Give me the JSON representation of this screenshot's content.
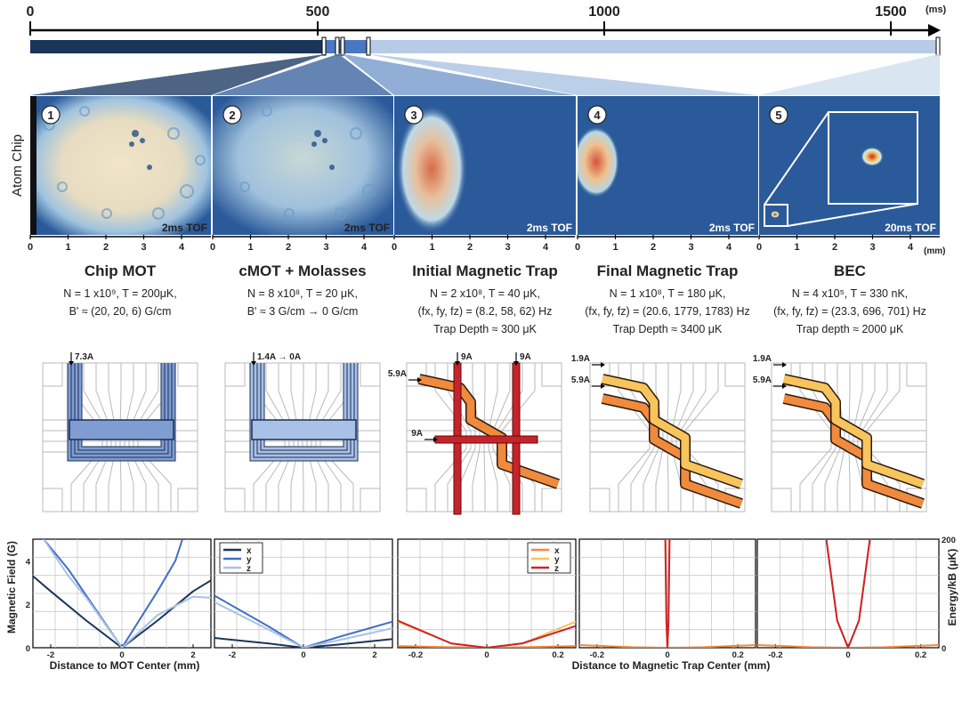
{
  "timeline": {
    "ticks": [
      "0",
      "500",
      "1000",
      "1500"
    ],
    "unit": "(ms)"
  },
  "side_label": "Atom Chip",
  "image_axis_ticks": [
    "0",
    "1",
    "2",
    "3",
    "4"
  ],
  "image_axis_unit": "(mm)",
  "stages": [
    {
      "num": "1",
      "tof": "2ms TOF",
      "title": "Chip MOT",
      "params": [
        "N = 1 x10⁹,  T = 200μK,",
        "B' ≈ (20, 20, 6) G/cm"
      ],
      "currents": [
        "7.3A"
      ]
    },
    {
      "num": "2",
      "tof": "2ms TOF",
      "title": "cMOT + Molasses",
      "params": [
        "N = 8 x10⁸,  T = 20 μK,",
        "B' ≈ 3 G/cm → 0 G/cm"
      ],
      "currents": [
        "1.4A → 0A"
      ]
    },
    {
      "num": "3",
      "tof": "2ms TOF",
      "title": "Initial Magnetic Trap",
      "params": [
        "N = 2 x10⁸,  T = 40 μK,",
        "(fx, fy, fz) = (8.2, 58, 62) Hz",
        "Trap Depth ≈ 300 μK"
      ],
      "currents": [
        "9A",
        "9A",
        "5.9A",
        "9A"
      ]
    },
    {
      "num": "4",
      "tof": "2ms TOF",
      "title": "Final Magnetic Trap",
      "params": [
        "N = 1 x10⁸,  T = 180 μK,",
        "(fx, fy, fz) = (20.6, 1779, 1783) Hz",
        "Trap Depth ≈ 3400 μK"
      ],
      "currents": [
        "1.9A",
        "5.9A"
      ]
    },
    {
      "num": "5",
      "tof": "20ms TOF",
      "title": "BEC",
      "params": [
        "N = 4 x10⁵,  T = 330 nK,",
        "(fx, fy, fz) = (23.3, 696, 701) Hz",
        "Trap depth ≈ 2000 μK"
      ],
      "currents": [
        "1.9A",
        "5.9A"
      ]
    }
  ],
  "colors": {
    "timeline_dark": "#1b355a",
    "timeline_mid": "#4a77c4",
    "timeline_light": "#b7cbe7",
    "image_bg": "#2a5a9a",
    "wire_blue": "#7f9dd2",
    "wire_red": "#c8232a",
    "wire_orange": "#f08a3c",
    "wire_yellow": "#f8c45c",
    "x_blue": "#1b355a",
    "y_blue": "#3f6fc4",
    "z_blue": "#a9c2e6",
    "x_warm": "#f28a3c",
    "y_warm": "#f6c35a",
    "z_warm": "#cc2229"
  },
  "chart_data": [
    {
      "type": "line",
      "xlabel": "Distance to MOT Center (mm)",
      "ylabel": "Magnetic Field (G)",
      "xlim": [
        -2.5,
        2.5
      ],
      "ylim": [
        0,
        5
      ],
      "xticks": [
        "-2",
        "0",
        "2"
      ],
      "yticks": [
        "0",
        "2",
        "4"
      ],
      "grid": true,
      "legend": null,
      "series": [
        {
          "x": [
            -2.5,
            -2,
            -1,
            0,
            1,
            2,
            2.5
          ],
          "y": [
            3.3,
            2.6,
            1.25,
            0,
            1.25,
            2.6,
            3.1
          ]
        },
        {
          "x": [
            -2.2,
            -1.5,
            -1,
            0,
            1,
            1.5,
            1.7
          ],
          "y": [
            5.0,
            3.6,
            2.4,
            0,
            2.6,
            4.0,
            5.0
          ]
        },
        {
          "x": [
            -2.2,
            -1.5,
            -1,
            0,
            1,
            2,
            2.5
          ],
          "y": [
            5.0,
            3.3,
            2.3,
            0,
            1.5,
            2.35,
            2.3
          ]
        }
      ]
    },
    {
      "type": "line",
      "xlim": [
        -2.5,
        2.5
      ],
      "ylim": [
        0,
        5
      ],
      "xticks": [
        "-2",
        "0",
        "2"
      ],
      "grid": true,
      "legend": "top-left",
      "series": [
        {
          "name": "x",
          "x": [
            -2.5,
            -1,
            0,
            1,
            2.5
          ],
          "y": [
            0.45,
            0.2,
            0,
            0.15,
            0.4
          ]
        },
        {
          "name": "y",
          "x": [
            -2.5,
            -1,
            0,
            1,
            2.5
          ],
          "y": [
            2.4,
            1.0,
            0,
            0.5,
            1.2
          ]
        },
        {
          "name": "z",
          "x": [
            -2.5,
            -1,
            0,
            1,
            2.5
          ],
          "y": [
            2.1,
            0.85,
            0,
            0.35,
            0.9
          ]
        }
      ]
    },
    {
      "type": "line",
      "xlim": [
        -0.25,
        0.25
      ],
      "ylim": [
        0,
        200
      ],
      "xticks": [
        "-0.2",
        "0",
        "0.2"
      ],
      "grid": true,
      "legend": "top-right",
      "series": [
        {
          "name": "x",
          "x": [
            -0.25,
            -0.1,
            0,
            0.1,
            0.25
          ],
          "y": [
            3,
            1,
            0,
            1,
            3
          ]
        },
        {
          "name": "y",
          "x": [
            -0.25,
            -0.1,
            0,
            0.1,
            0.25
          ],
          "y": [
            48,
            8,
            0,
            8,
            48
          ]
        },
        {
          "name": "z",
          "x": [
            -0.25,
            -0.1,
            0,
            0.1,
            0.25
          ],
          "y": [
            50,
            8,
            0,
            8,
            40
          ]
        }
      ]
    },
    {
      "type": "line",
      "xlabel": "Distance to Magnetic Trap Center (mm)",
      "xlim": [
        -0.25,
        0.25
      ],
      "ylim": [
        0,
        200
      ],
      "xticks": [
        "-0.2",
        "0",
        "0.2"
      ],
      "grid": true,
      "legend": null,
      "series": [
        {
          "x": [
            -0.25,
            -0.1,
            0,
            0.1,
            0.25
          ],
          "y": [
            5,
            1,
            0,
            1,
            5
          ]
        },
        {
          "x": [
            -0.006,
            -0.003,
            0,
            0.003,
            0.006
          ],
          "y": [
            200,
            50,
            0,
            50,
            200
          ]
        },
        {
          "x": [
            -0.006,
            -0.003,
            0,
            0.003,
            0.006
          ],
          "y": [
            200,
            50,
            0,
            50,
            200
          ]
        }
      ]
    },
    {
      "type": "line",
      "ylabel": "Energy/kB (μK)",
      "xlim": [
        -0.25,
        0.25
      ],
      "ylim": [
        0,
        200
      ],
      "xticks": [
        "-0.2",
        "0",
        "0.2"
      ],
      "yticks": [
        "0",
        "200"
      ],
      "grid": true,
      "legend": null,
      "series": [
        {
          "x": [
            -0.25,
            -0.1,
            0,
            0.1,
            0.25
          ],
          "y": [
            5,
            1,
            0,
            1,
            5
          ]
        },
        {
          "x": [
            -0.06,
            -0.03,
            0,
            0.03,
            0.06
          ],
          "y": [
            200,
            50,
            0,
            50,
            200
          ]
        },
        {
          "x": [
            -0.06,
            -0.03,
            0,
            0.03,
            0.06
          ],
          "y": [
            200,
            50,
            0,
            50,
            200
          ]
        }
      ]
    }
  ]
}
